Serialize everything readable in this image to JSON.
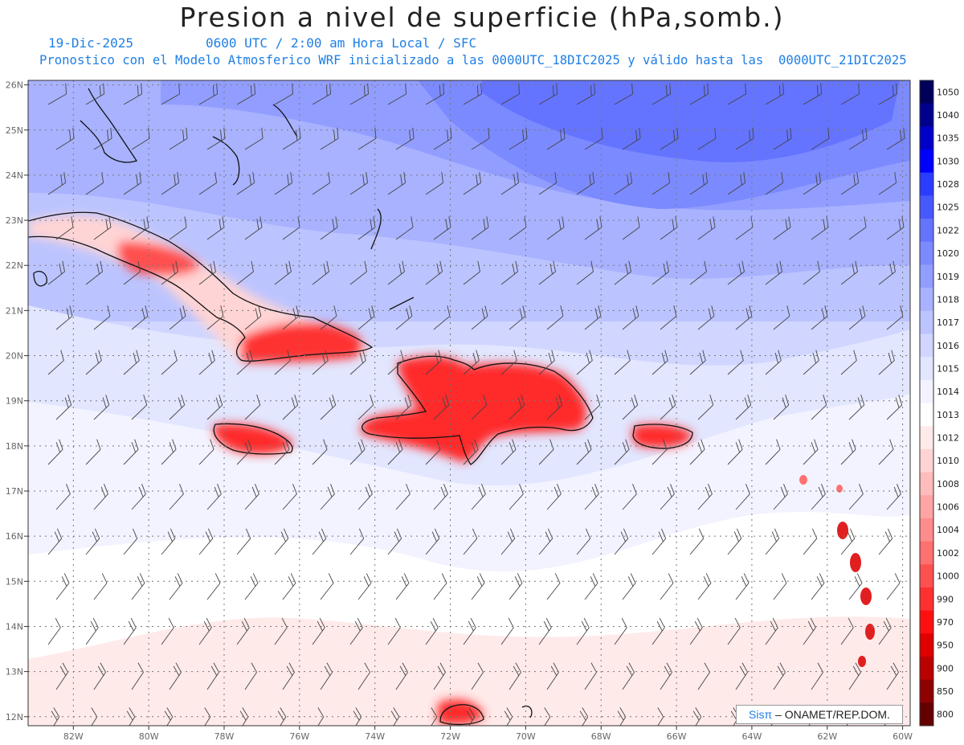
{
  "title": "Presion a nivel de superficie (hPa,somb.)",
  "date_line": "19-Dic-2025",
  "time_line": "0600 UTC / 2:00 am Hora Local / SFC",
  "model_line": "Pronostico con el Modelo Atmosferico WRF inicializado a las 0000UTC_18DIC2025 y válido hasta las  0000UTC_21DIC2025",
  "credit": {
    "brand": "Sisπ",
    "org": "– ONAMET/REP.DOM."
  },
  "map": {
    "lon_range": [
      -83.2,
      -59.8
    ],
    "lat_range": [
      11.8,
      26.1
    ],
    "lat_labels": [
      "26N",
      "25N",
      "24N",
      "23N",
      "22N",
      "21N",
      "20N",
      "19N",
      "18N",
      "17N",
      "16N",
      "15N",
      "14N",
      "13N",
      "12N"
    ],
    "lon_labels": [
      "82W",
      "80W",
      "78W",
      "76W",
      "74W",
      "72W",
      "70W",
      "68W",
      "66W",
      "64W",
      "62W",
      "60W"
    ],
    "lat_values": [
      26,
      25,
      24,
      23,
      22,
      21,
      20,
      19,
      18,
      17,
      16,
      15,
      14,
      13,
      12
    ],
    "lon_values": [
      -82,
      -80,
      -78,
      -76,
      -74,
      -72,
      -70,
      -68,
      -66,
      -64,
      -62,
      -60
    ]
  },
  "colorbar": {
    "levels": [
      "1050",
      "1040",
      "1035",
      "1030",
      "1028",
      "1025",
      "1022",
      "1020",
      "1019",
      "1018",
      "1017",
      "1016",
      "1015",
      "1014",
      "1013",
      "1012",
      "1010",
      "1008",
      "1006",
      "1004",
      "1002",
      "1000",
      "990",
      "970",
      "950",
      "900",
      "850",
      "800"
    ],
    "colors": [
      "#00005a",
      "#00008c",
      "#0000c8",
      "#0000ff",
      "#2a3cff",
      "#4858ff",
      "#6474ff",
      "#7c8aff",
      "#929eff",
      "#a8b2ff",
      "#bcc4ff",
      "#d0d6ff",
      "#e2e6ff",
      "#f2f3ff",
      "#ffffff",
      "#ffeaea",
      "#ffd4d4",
      "#ffbcbc",
      "#ffa4a4",
      "#ff8c8c",
      "#ff7070",
      "#ff5050",
      "#ff3030",
      "#ff1010",
      "#e00000",
      "#bb0000",
      "#8f0000",
      "#640000"
    ]
  }
}
